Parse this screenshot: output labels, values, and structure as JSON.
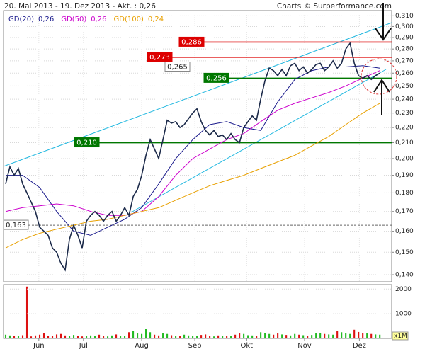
{
  "chart_data": {
    "type": "line",
    "title": "20. Mai 2013 - 19. Dez 2013 - Akt. : 0,26",
    "source": "Charts © Surperformance.com",
    "log_y": true,
    "grid": true,
    "ylim": [
      0.137,
      0.315
    ],
    "yticks": [
      {
        "value": 0.14,
        "label": "0,140"
      },
      {
        "value": 0.15,
        "label": "0,150"
      },
      {
        "value": 0.16,
        "label": "0,160"
      },
      {
        "value": 0.17,
        "label": "0,170"
      },
      {
        "value": 0.18,
        "label": "0,180"
      },
      {
        "value": 0.19,
        "label": "0,190"
      },
      {
        "value": 0.2,
        "label": "0,200"
      },
      {
        "value": 0.21,
        "label": "0,210"
      },
      {
        "value": 0.22,
        "label": "0,220"
      },
      {
        "value": 0.23,
        "label": "0,230"
      },
      {
        "value": 0.24,
        "label": "0,240"
      },
      {
        "value": 0.25,
        "label": "0,250"
      },
      {
        "value": 0.26,
        "label": "0,260"
      },
      {
        "value": 0.27,
        "label": "0,270"
      },
      {
        "value": 0.28,
        "label": "0,280"
      },
      {
        "value": 0.29,
        "label": "0,290"
      },
      {
        "value": 0.3,
        "label": "0,300"
      },
      {
        "value": 0.31,
        "label": "0,310"
      }
    ],
    "xlim": [
      -0.5,
      90.8
    ],
    "xticks": [
      {
        "value": 7.8,
        "label": "Jun"
      },
      {
        "value": 18.3,
        "label": "Jul"
      },
      {
        "value": 32,
        "label": "Aug"
      },
      {
        "value": 44.5,
        "label": "Sep"
      },
      {
        "value": 56.7,
        "label": "Okt"
      },
      {
        "value": 70.3,
        "label": "Nov"
      },
      {
        "value": 83.2,
        "label": "Dez"
      }
    ],
    "x": [
      0,
      1,
      2,
      3,
      4,
      5,
      6,
      7,
      8,
      9,
      10,
      11,
      12,
      13,
      14,
      15,
      16,
      17,
      18,
      19,
      20,
      21,
      22,
      23,
      24,
      25,
      26,
      27,
      28,
      29,
      30,
      31,
      32,
      33,
      34,
      35,
      36,
      37,
      38,
      39,
      40,
      41,
      42,
      43,
      44,
      45,
      46,
      47,
      48,
      49,
      50,
      51,
      52,
      53,
      54,
      55,
      56,
      57,
      58,
      59,
      60,
      61,
      62,
      63,
      64,
      65,
      66,
      67,
      68,
      69,
      70,
      71,
      72,
      73,
      74,
      75,
      76,
      77,
      78,
      79,
      80,
      81,
      82,
      83,
      84,
      85,
      86,
      87,
      88
    ],
    "values": [
      0.185,
      0.195,
      0.19,
      0.194,
      0.185,
      0.18,
      0.175,
      0.17,
      0.162,
      0.16,
      0.158,
      0.152,
      0.15,
      0.145,
      0.142,
      0.156,
      0.163,
      0.158,
      0.152,
      0.165,
      0.168,
      0.17,
      0.168,
      0.165,
      0.168,
      0.17,
      0.165,
      0.168,
      0.172,
      0.168,
      0.178,
      0.182,
      0.19,
      0.202,
      0.212,
      0.206,
      0.2,
      0.212,
      0.225,
      0.223,
      0.224,
      0.22,
      0.222,
      0.226,
      0.23,
      0.233,
      0.224,
      0.218,
      0.215,
      0.218,
      0.214,
      0.215,
      0.212,
      0.216,
      0.212,
      0.21,
      0.22,
      0.224,
      0.228,
      0.225,
      0.24,
      0.254,
      0.264,
      0.262,
      0.258,
      0.263,
      0.258,
      0.266,
      0.268,
      0.262,
      0.265,
      0.26,
      0.263,
      0.267,
      0.268,
      0.262,
      0.265,
      0.27,
      0.264,
      0.268,
      0.28,
      0.285,
      0.268,
      0.258,
      0.256,
      0.258,
      0.255,
      0.258,
      0.26
    ],
    "color": "#1c2a4a",
    "series": [
      {
        "name": "GD(20)",
        "value_label": "0,26",
        "color": "#1a1a8c",
        "x": [
          0,
          4,
          8,
          12,
          16,
          20,
          24,
          28,
          32,
          36,
          40,
          44,
          48,
          52,
          56,
          60,
          64,
          68,
          72,
          76,
          80,
          84,
          88
        ],
        "values": [
          0.19,
          0.19,
          0.183,
          0.17,
          0.16,
          0.158,
          0.162,
          0.166,
          0.172,
          0.185,
          0.2,
          0.212,
          0.222,
          0.224,
          0.22,
          0.218,
          0.238,
          0.255,
          0.262,
          0.265,
          0.265,
          0.266,
          0.264
        ]
      },
      {
        "name": "GD(50)",
        "value_label": "0,26",
        "color": "#cc00cc",
        "x": [
          0,
          4,
          8,
          12,
          16,
          20,
          24,
          28,
          32,
          36,
          40,
          44,
          48,
          52,
          56,
          60,
          64,
          68,
          72,
          76,
          80,
          84,
          88
        ],
        "values": [
          0.17,
          0.172,
          0.173,
          0.174,
          0.173,
          0.17,
          0.168,
          0.168,
          0.17,
          0.178,
          0.19,
          0.2,
          0.206,
          0.212,
          0.216,
          0.224,
          0.232,
          0.237,
          0.241,
          0.245,
          0.25,
          0.256,
          0.262
        ]
      },
      {
        "name": "GD(100)",
        "value_label": "0,24",
        "color": "#e8a000",
        "x": [
          0,
          4,
          8,
          12,
          16,
          20,
          24,
          28,
          32,
          36,
          40,
          44,
          48,
          52,
          56,
          60,
          64,
          68,
          72,
          76,
          80,
          84,
          88
        ],
        "values": [
          0.152,
          0.156,
          0.159,
          0.161,
          0.163,
          0.165,
          0.166,
          0.168,
          0.17,
          0.172,
          0.176,
          0.18,
          0.184,
          0.187,
          0.19,
          0.194,
          0.198,
          0.202,
          0.208,
          0.214,
          0.222,
          0.23,
          0.237
        ]
      }
    ],
    "levels": [
      {
        "value": 0.286,
        "label": "0,286",
        "color": "#dd0000",
        "style": "solid"
      },
      {
        "value": 0.273,
        "label": "0,273",
        "color": "#dd0000",
        "style": "solid"
      },
      {
        "value": 0.265,
        "label": "0,265",
        "color": "#666666",
        "style": "dashed"
      },
      {
        "value": 0.256,
        "label": "0,256",
        "color": "#007700",
        "style": "solid"
      },
      {
        "value": 0.21,
        "label": "0,210",
        "color": "#007700",
        "style": "solid"
      },
      {
        "value": 0.163,
        "label": "0,163",
        "color": "#666666",
        "style": "dashed"
      }
    ],
    "volume": {
      "unit_label": "x1M",
      "ylim": [
        0,
        2180
      ],
      "yticks": [
        1000,
        2000
      ],
      "up_color": "#22bb22",
      "down_color": "#dd1111",
      "values": [
        150,
        120,
        100,
        90,
        130,
        2100,
        80,
        120,
        150,
        200,
        110,
        90,
        160,
        180,
        120,
        90,
        140,
        100,
        80,
        110,
        120,
        90,
        150,
        100,
        80,
        120,
        160,
        90,
        110,
        250,
        300,
        200,
        180,
        400,
        250,
        150,
        120,
        200,
        180,
        130,
        100,
        90,
        150,
        120,
        110,
        90,
        140,
        160,
        100,
        80,
        120,
        90,
        100,
        110,
        150,
        200,
        180,
        130,
        120,
        110,
        250,
        220,
        180,
        150,
        200,
        160,
        140,
        120,
        180,
        150,
        130,
        110,
        140,
        200,
        230,
        180,
        160,
        150,
        300,
        250,
        200,
        180,
        350,
        260,
        220,
        200,
        180,
        160,
        150
      ]
    }
  }
}
